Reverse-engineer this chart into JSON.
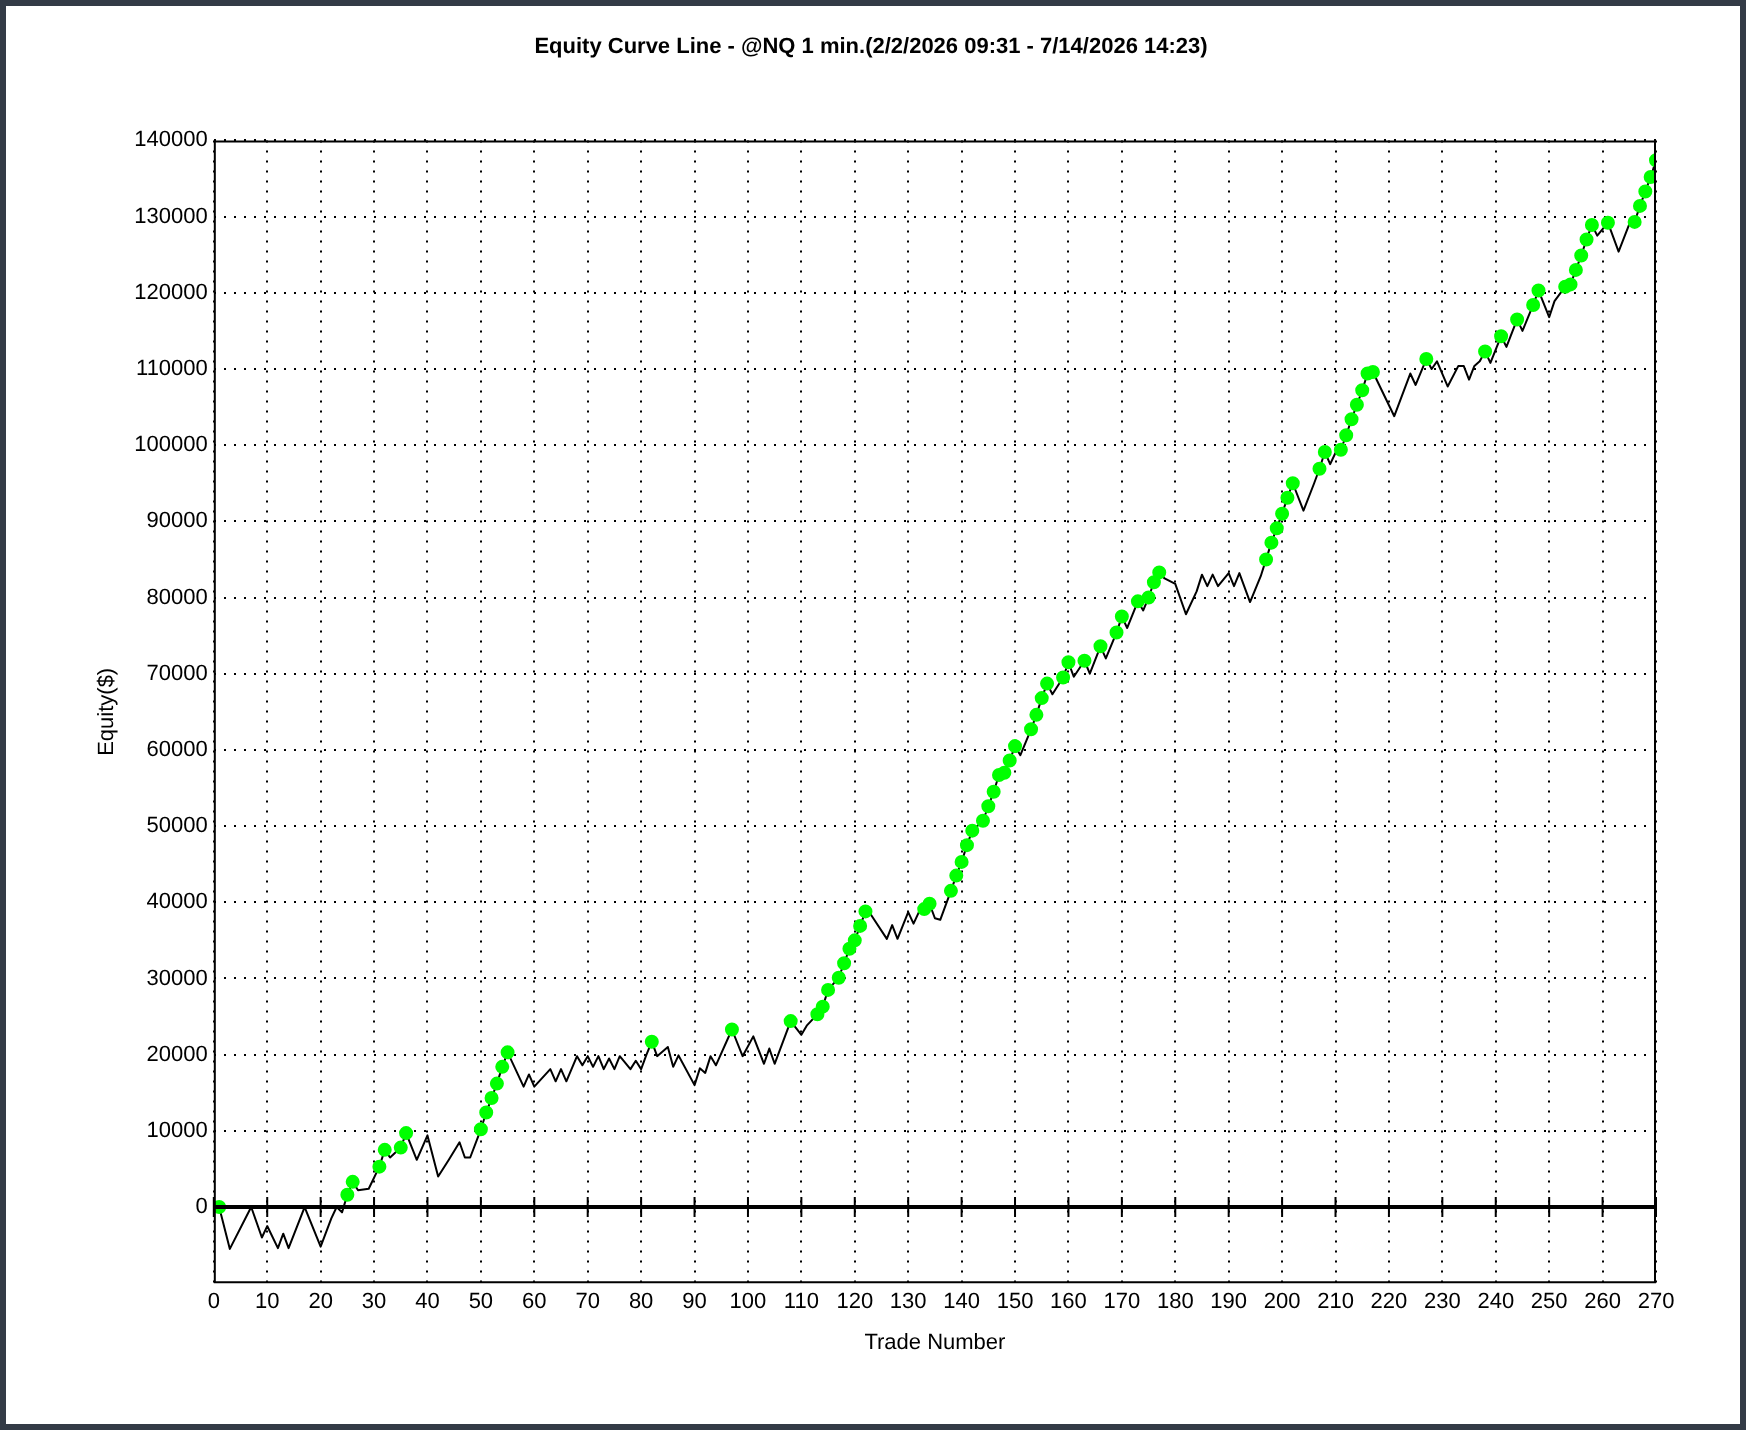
{
  "chart_data": {
    "type": "line",
    "title": "Equity Curve Line - @NQ 1 min.(2/2/2026 09:31 - 7/14/2026 14:23)",
    "xlabel": "Trade Number",
    "ylabel": "Equity($)",
    "xlim": [
      0,
      270
    ],
    "xticks": [
      0,
      10,
      20,
      30,
      40,
      50,
      60,
      70,
      80,
      90,
      100,
      110,
      120,
      130,
      140,
      150,
      160,
      170,
      180,
      190,
      200,
      210,
      220,
      230,
      240,
      250,
      260,
      270
    ],
    "ylim": [
      -10000,
      140000
    ],
    "yticks": [
      0,
      10000,
      20000,
      30000,
      40000,
      50000,
      60000,
      70000,
      80000,
      90000,
      100000,
      110000,
      120000,
      130000,
      140000
    ],
    "grid": true,
    "legend": false,
    "ref_lines": [
      {
        "axis": "y",
        "value": 0,
        "color": "#000000"
      }
    ],
    "series": [
      {
        "color": "#000000",
        "marker": "none",
        "x": [
          1,
          3,
          7,
          9,
          10,
          12,
          13,
          14,
          17,
          20,
          22,
          23,
          24,
          25,
          26,
          27,
          29,
          31,
          32,
          33,
          35,
          36,
          38,
          40,
          42,
          44,
          46,
          47,
          48,
          50,
          51,
          52,
          53,
          54,
          55,
          58,
          59,
          60,
          63,
          64,
          65,
          66,
          68,
          69,
          70,
          71,
          72,
          73,
          74,
          75,
          76,
          78,
          79,
          80,
          81,
          82,
          83,
          85,
          86,
          87,
          90,
          91,
          92,
          93,
          94,
          97,
          99,
          101,
          103,
          104,
          105,
          108,
          110,
          111,
          113,
          114,
          115,
          117,
          118,
          119,
          120,
          121,
          122,
          123,
          126,
          127,
          128,
          130,
          131,
          132,
          133,
          134,
          135,
          136,
          138,
          139,
          140,
          141,
          142,
          144,
          145,
          146,
          147,
          148,
          149,
          150,
          151,
          153,
          154,
          155,
          156,
          157,
          159,
          160,
          161,
          163,
          164,
          166,
          167,
          169,
          170,
          171,
          173,
          174,
          175,
          176,
          177,
          178,
          180,
          182,
          184,
          185,
          186,
          187,
          188,
          190,
          191,
          192,
          194,
          196,
          197,
          198,
          199,
          200,
          201,
          202,
          204,
          206,
          207,
          208,
          209,
          210,
          211,
          212,
          213,
          214,
          215,
          216,
          217,
          221,
          224,
          225,
          227,
          228,
          229,
          231,
          233,
          234,
          235,
          236,
          237,
          238,
          239,
          241,
          242,
          244,
          245,
          247,
          248,
          250,
          251,
          253,
          254,
          255,
          256,
          257,
          258,
          259,
          261,
          263,
          265,
          266,
          267,
          268,
          269,
          270
        ],
        "values": [
          0,
          -5500,
          0,
          -4000,
          -2500,
          -5400,
          -3500,
          -5400,
          0,
          -5200,
          -1500,
          0,
          -700,
          1600,
          3300,
          2200,
          2400,
          5300,
          7500,
          6500,
          7800,
          9700,
          6200,
          9400,
          4000,
          6200,
          8500,
          6500,
          6500,
          10200,
          12400,
          14300,
          16200,
          18400,
          20300,
          15800,
          17400,
          15800,
          18100,
          16500,
          18100,
          16500,
          19800,
          18600,
          19800,
          18400,
          19800,
          18100,
          19500,
          18100,
          19800,
          18100,
          19200,
          18100,
          20000,
          21700,
          19800,
          21000,
          18400,
          19900,
          16000,
          18200,
          17600,
          19800,
          18600,
          23300,
          19800,
          22400,
          18800,
          20800,
          18800,
          24400,
          22600,
          23800,
          25300,
          26300,
          28500,
          30100,
          32000,
          33900,
          35000,
          36900,
          38800,
          38400,
          35200,
          37000,
          35200,
          38700,
          37200,
          38700,
          39100,
          39800,
          37900,
          37700,
          41500,
          43500,
          45300,
          47500,
          49400,
          50700,
          52600,
          54500,
          56700,
          57000,
          58600,
          60500,
          59300,
          62700,
          64600,
          66800,
          68700,
          67300,
          69500,
          71500,
          69600,
          71700,
          70000,
          73600,
          72000,
          75400,
          77500,
          76000,
          79500,
          78300,
          80000,
          82000,
          83300,
          82500,
          81800,
          77800,
          80800,
          83000,
          81500,
          83000,
          81500,
          83200,
          81500,
          83200,
          79400,
          82800,
          85000,
          87200,
          89100,
          91000,
          93100,
          95000,
          91400,
          95000,
          96900,
          99100,
          97500,
          99000,
          99400,
          101300,
          103400,
          105300,
          107200,
          109400,
          109600,
          103800,
          109400,
          107900,
          111300,
          110000,
          111000,
          107700,
          110400,
          110400,
          108600,
          110400,
          111000,
          112300,
          110800,
          114300,
          112900,
          116500,
          115000,
          118400,
          120300,
          116800,
          118900,
          120800,
          121100,
          123000,
          124900,
          127000,
          128900,
          127500,
          129200,
          125400,
          129000,
          129300,
          131400,
          133300,
          135200,
          137400
        ]
      },
      {
        "type": "scatter",
        "color": "#00ff00",
        "marker": "circle",
        "x": [
          1,
          25,
          26,
          31,
          32,
          35,
          36,
          50,
          51,
          52,
          53,
          54,
          55,
          82,
          97,
          108,
          113,
          114,
          115,
          117,
          118,
          119,
          120,
          121,
          122,
          133,
          134,
          138,
          139,
          140,
          141,
          142,
          144,
          145,
          146,
          147,
          148,
          149,
          150,
          153,
          154,
          155,
          156,
          159,
          160,
          163,
          166,
          169,
          170,
          173,
          175,
          176,
          177,
          197,
          198,
          199,
          200,
          201,
          202,
          207,
          208,
          211,
          212,
          213,
          214,
          215,
          216,
          217,
          227,
          238,
          241,
          244,
          247,
          248,
          253,
          254,
          255,
          256,
          257,
          258,
          261,
          266,
          267,
          268,
          269,
          270
        ],
        "values": [
          0,
          1600,
          3300,
          5300,
          7500,
          7800,
          9700,
          10200,
          12400,
          14300,
          16200,
          18400,
          20300,
          21700,
          23300,
          24400,
          25300,
          26300,
          28500,
          30100,
          32000,
          33900,
          35000,
          36900,
          38800,
          39100,
          39800,
          41500,
          43500,
          45300,
          47500,
          49400,
          50700,
          52600,
          54500,
          56700,
          57000,
          58600,
          60500,
          62700,
          64600,
          66800,
          68700,
          69500,
          71500,
          71700,
          73600,
          75400,
          77500,
          79500,
          80000,
          82000,
          83300,
          85000,
          87200,
          89100,
          91000,
          93100,
          95000,
          96900,
          99100,
          99400,
          101300,
          103400,
          105300,
          107200,
          109400,
          109600,
          111300,
          112300,
          114300,
          116500,
          118400,
          120300,
          120800,
          121100,
          123000,
          124900,
          127000,
          128900,
          129200,
          129300,
          131400,
          133300,
          135200,
          137400
        ]
      }
    ]
  }
}
